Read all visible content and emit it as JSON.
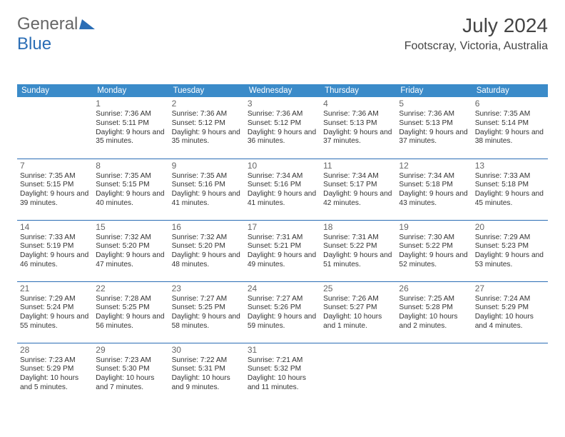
{
  "logo": {
    "part1": "General",
    "part2": "Blue"
  },
  "title": "July 2024",
  "location": "Footscray, Victoria, Australia",
  "day_headers": [
    "Sunday",
    "Monday",
    "Tuesday",
    "Wednesday",
    "Thursday",
    "Friday",
    "Saturday"
  ],
  "header_bg": "#3b8bc9",
  "rule_color": "#2a6db5",
  "weeks": [
    [
      null,
      {
        "n": "1",
        "sr": "Sunrise: 7:36 AM",
        "ss": "Sunset: 5:11 PM",
        "dl": "Daylight: 9 hours and 35 minutes."
      },
      {
        "n": "2",
        "sr": "Sunrise: 7:36 AM",
        "ss": "Sunset: 5:12 PM",
        "dl": "Daylight: 9 hours and 35 minutes."
      },
      {
        "n": "3",
        "sr": "Sunrise: 7:36 AM",
        "ss": "Sunset: 5:12 PM",
        "dl": "Daylight: 9 hours and 36 minutes."
      },
      {
        "n": "4",
        "sr": "Sunrise: 7:36 AM",
        "ss": "Sunset: 5:13 PM",
        "dl": "Daylight: 9 hours and 37 minutes."
      },
      {
        "n": "5",
        "sr": "Sunrise: 7:36 AM",
        "ss": "Sunset: 5:13 PM",
        "dl": "Daylight: 9 hours and 37 minutes."
      },
      {
        "n": "6",
        "sr": "Sunrise: 7:35 AM",
        "ss": "Sunset: 5:14 PM",
        "dl": "Daylight: 9 hours and 38 minutes."
      }
    ],
    [
      {
        "n": "7",
        "sr": "Sunrise: 7:35 AM",
        "ss": "Sunset: 5:15 PM",
        "dl": "Daylight: 9 hours and 39 minutes."
      },
      {
        "n": "8",
        "sr": "Sunrise: 7:35 AM",
        "ss": "Sunset: 5:15 PM",
        "dl": "Daylight: 9 hours and 40 minutes."
      },
      {
        "n": "9",
        "sr": "Sunrise: 7:35 AM",
        "ss": "Sunset: 5:16 PM",
        "dl": "Daylight: 9 hours and 41 minutes."
      },
      {
        "n": "10",
        "sr": "Sunrise: 7:34 AM",
        "ss": "Sunset: 5:16 PM",
        "dl": "Daylight: 9 hours and 41 minutes."
      },
      {
        "n": "11",
        "sr": "Sunrise: 7:34 AM",
        "ss": "Sunset: 5:17 PM",
        "dl": "Daylight: 9 hours and 42 minutes."
      },
      {
        "n": "12",
        "sr": "Sunrise: 7:34 AM",
        "ss": "Sunset: 5:18 PM",
        "dl": "Daylight: 9 hours and 43 minutes."
      },
      {
        "n": "13",
        "sr": "Sunrise: 7:33 AM",
        "ss": "Sunset: 5:18 PM",
        "dl": "Daylight: 9 hours and 45 minutes."
      }
    ],
    [
      {
        "n": "14",
        "sr": "Sunrise: 7:33 AM",
        "ss": "Sunset: 5:19 PM",
        "dl": "Daylight: 9 hours and 46 minutes."
      },
      {
        "n": "15",
        "sr": "Sunrise: 7:32 AM",
        "ss": "Sunset: 5:20 PM",
        "dl": "Daylight: 9 hours and 47 minutes."
      },
      {
        "n": "16",
        "sr": "Sunrise: 7:32 AM",
        "ss": "Sunset: 5:20 PM",
        "dl": "Daylight: 9 hours and 48 minutes."
      },
      {
        "n": "17",
        "sr": "Sunrise: 7:31 AM",
        "ss": "Sunset: 5:21 PM",
        "dl": "Daylight: 9 hours and 49 minutes."
      },
      {
        "n": "18",
        "sr": "Sunrise: 7:31 AM",
        "ss": "Sunset: 5:22 PM",
        "dl": "Daylight: 9 hours and 51 minutes."
      },
      {
        "n": "19",
        "sr": "Sunrise: 7:30 AM",
        "ss": "Sunset: 5:22 PM",
        "dl": "Daylight: 9 hours and 52 minutes."
      },
      {
        "n": "20",
        "sr": "Sunrise: 7:29 AM",
        "ss": "Sunset: 5:23 PM",
        "dl": "Daylight: 9 hours and 53 minutes."
      }
    ],
    [
      {
        "n": "21",
        "sr": "Sunrise: 7:29 AM",
        "ss": "Sunset: 5:24 PM",
        "dl": "Daylight: 9 hours and 55 minutes."
      },
      {
        "n": "22",
        "sr": "Sunrise: 7:28 AM",
        "ss": "Sunset: 5:25 PM",
        "dl": "Daylight: 9 hours and 56 minutes."
      },
      {
        "n": "23",
        "sr": "Sunrise: 7:27 AM",
        "ss": "Sunset: 5:25 PM",
        "dl": "Daylight: 9 hours and 58 minutes."
      },
      {
        "n": "24",
        "sr": "Sunrise: 7:27 AM",
        "ss": "Sunset: 5:26 PM",
        "dl": "Daylight: 9 hours and 59 minutes."
      },
      {
        "n": "25",
        "sr": "Sunrise: 7:26 AM",
        "ss": "Sunset: 5:27 PM",
        "dl": "Daylight: 10 hours and 1 minute."
      },
      {
        "n": "26",
        "sr": "Sunrise: 7:25 AM",
        "ss": "Sunset: 5:28 PM",
        "dl": "Daylight: 10 hours and 2 minutes."
      },
      {
        "n": "27",
        "sr": "Sunrise: 7:24 AM",
        "ss": "Sunset: 5:29 PM",
        "dl": "Daylight: 10 hours and 4 minutes."
      }
    ],
    [
      {
        "n": "28",
        "sr": "Sunrise: 7:23 AM",
        "ss": "Sunset: 5:29 PM",
        "dl": "Daylight: 10 hours and 5 minutes."
      },
      {
        "n": "29",
        "sr": "Sunrise: 7:23 AM",
        "ss": "Sunset: 5:30 PM",
        "dl": "Daylight: 10 hours and 7 minutes."
      },
      {
        "n": "30",
        "sr": "Sunrise: 7:22 AM",
        "ss": "Sunset: 5:31 PM",
        "dl": "Daylight: 10 hours and 9 minutes."
      },
      {
        "n": "31",
        "sr": "Sunrise: 7:21 AM",
        "ss": "Sunset: 5:32 PM",
        "dl": "Daylight: 10 hours and 11 minutes."
      },
      null,
      null,
      null
    ]
  ]
}
